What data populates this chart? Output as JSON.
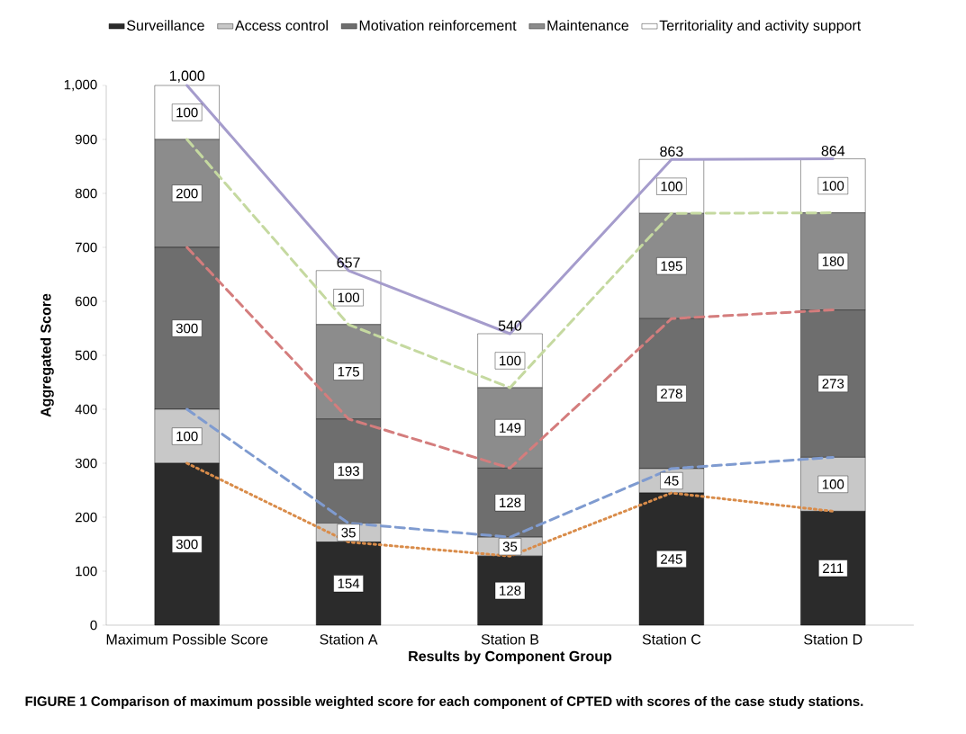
{
  "chart_data": {
    "type": "bar",
    "stacked": true,
    "xlabel": "Results by Component Group",
    "ylabel": "Aggregated Score",
    "categories": [
      "Maximum Possible Score",
      "Station A",
      "Station B",
      "Station C",
      "Station D"
    ],
    "series": [
      {
        "name": "Surveillance",
        "color": "#2b2b2b",
        "values": [
          300,
          154,
          128,
          245,
          211
        ],
        "value_labels": [
          "300",
          "154",
          "128",
          "245",
          "211"
        ]
      },
      {
        "name": "Access control",
        "color": "#c8c8c8",
        "values": [
          100,
          35,
          35,
          45,
          100
        ],
        "value_labels": [
          "100",
          "35",
          "35",
          "45",
          "100"
        ]
      },
      {
        "name": "Motivation reinforcement",
        "color": "#6e6e6e",
        "values": [
          300,
          193,
          128,
          278,
          273
        ],
        "value_labels": [
          "300",
          "193",
          "128",
          "278",
          "273"
        ]
      },
      {
        "name": "Maintenance",
        "color": "#8c8c8c",
        "values": [
          200,
          175,
          149,
          195,
          180
        ],
        "value_labels": [
          "200",
          "175",
          "149",
          "195",
          "180"
        ]
      },
      {
        "name": "Territoriality and activity support",
        "color": "#ffffff",
        "values": [
          100,
          100,
          100,
          100,
          100
        ],
        "value_labels": [
          "100",
          "100",
          "100",
          "100",
          "100"
        ]
      },
      {
        "type": "line",
        "color": "#d98c4a",
        "line_style": "dotted",
        "values": [
          300,
          154,
          128,
          245,
          211
        ]
      },
      {
        "type": "line",
        "color": "#7f9bd0",
        "line_style": "dashed",
        "values": [
          400,
          189,
          163,
          290,
          311
        ]
      },
      {
        "type": "line",
        "color": "#d47d7d",
        "line_style": "dashed",
        "values": [
          700,
          382,
          291,
          568,
          584
        ]
      },
      {
        "type": "line",
        "color": "#c5d9a0",
        "line_style": "dashed",
        "values": [
          900,
          557,
          440,
          763,
          764
        ]
      },
      {
        "type": "line",
        "color": "#a59ccc",
        "line_style": "solid",
        "values": [
          1000,
          657,
          540,
          863,
          864
        ]
      }
    ],
    "ylim": [
      0,
      1000
    ],
    "yticks": [
      0,
      100,
      200,
      300,
      400,
      500,
      600,
      700,
      800,
      900,
      {
        "value": 1000,
        "label": "1,000"
      }
    ],
    "totals": [
      "1,000",
      "657",
      "540",
      "863",
      "864"
    ],
    "legend": "top",
    "annotations": [
      "FIGURE 1   Comparison of maximum possible weighted score for each component of CPTED with scores of the case study stations."
    ]
  }
}
